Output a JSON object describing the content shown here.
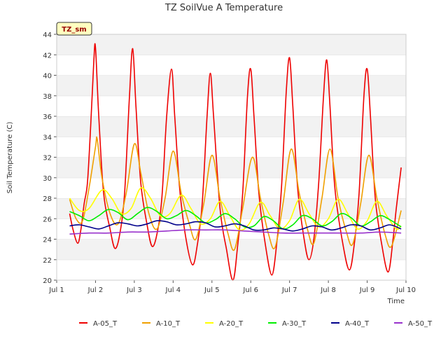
{
  "chart_data": {
    "type": "line",
    "title": "TZ SoilVue A Temperature",
    "xlabel": "Time",
    "ylabel": "Soil Temperature (C)",
    "badge": "TZ_sm",
    "xlim": [
      "2023-07-01",
      "2023-07-10"
    ],
    "ylim": [
      20,
      44
    ],
    "x_ticks": [
      {
        "date": "2023-07-01",
        "label": "Jul 1"
      },
      {
        "date": "2023-07-02",
        "label": "Jul 2"
      },
      {
        "date": "2023-07-03",
        "label": "Jul 3"
      },
      {
        "date": "2023-07-04",
        "label": "Jul 4"
      },
      {
        "date": "2023-07-05",
        "label": "Jul 5"
      },
      {
        "date": "2023-07-06",
        "label": "Jul 6"
      },
      {
        "date": "2023-07-07",
        "label": "Jul 7"
      },
      {
        "date": "2023-07-08",
        "label": "Jul 8"
      },
      {
        "date": "2023-07-09",
        "label": "Jul 9"
      },
      {
        "date": "2023-07-10",
        "label": "Jul 10"
      }
    ],
    "y_ticks": [
      20,
      22,
      24,
      26,
      28,
      30,
      32,
      34,
      36,
      38,
      40,
      42,
      44
    ],
    "grid": "horizontal bands",
    "legend_position": "bottom",
    "series": [
      {
        "name": "A-05_T",
        "color": "#ee0000",
        "points": [
          [
            "2023-07-01 08:00",
            26.5
          ],
          [
            "2023-07-01 10:00",
            25.0
          ],
          [
            "2023-07-01 13:00",
            23.6
          ],
          [
            "2023-07-01 15:00",
            25.0
          ],
          [
            "2023-07-01 17:00",
            27.5
          ],
          [
            "2023-07-01 19:00",
            29.5
          ],
          [
            "2023-07-01 21:00",
            35.0
          ],
          [
            "2023-07-01 23:00",
            41.5
          ],
          [
            "2023-07-02 00:00",
            42.7
          ],
          [
            "2023-07-02 02:00",
            36.0
          ],
          [
            "2023-07-02 05:00",
            28.5
          ],
          [
            "2023-07-02 09:00",
            25.0
          ],
          [
            "2023-07-02 12:00",
            23.1
          ],
          [
            "2023-07-02 15:00",
            24.5
          ],
          [
            "2023-07-02 18:00",
            28.5
          ],
          [
            "2023-07-02 21:00",
            38.0
          ],
          [
            "2023-07-02 23:00",
            42.6
          ],
          [
            "2023-07-03 01:00",
            37.0
          ],
          [
            "2023-07-03 04:00",
            29.5
          ],
          [
            "2023-07-03 08:00",
            25.3
          ],
          [
            "2023-07-03 11:00",
            23.3
          ],
          [
            "2023-07-03 14:00",
            24.5
          ],
          [
            "2023-07-03 17:00",
            28.0
          ],
          [
            "2023-07-03 20:00",
            36.0
          ],
          [
            "2023-07-03 23:00",
            40.6
          ],
          [
            "2023-07-04 01:00",
            36.0
          ],
          [
            "2023-07-04 04:00",
            29.0
          ],
          [
            "2023-07-04 08:00",
            24.0
          ],
          [
            "2023-07-04 12:00",
            21.5
          ],
          [
            "2023-07-04 15:00",
            23.5
          ],
          [
            "2023-07-04 18:00",
            27.5
          ],
          [
            "2023-07-04 21:00",
            36.0
          ],
          [
            "2023-07-04 23:00",
            40.2
          ],
          [
            "2023-07-05 01:00",
            36.0
          ],
          [
            "2023-07-05 05:00",
            27.0
          ],
          [
            "2023-07-05 09:00",
            23.0
          ],
          [
            "2023-07-05 13:00",
            20.0
          ],
          [
            "2023-07-05 16:00",
            23.5
          ],
          [
            "2023-07-05 19:00",
            28.5
          ],
          [
            "2023-07-05 22:00",
            38.0
          ],
          [
            "2023-07-06 00:00",
            40.6
          ],
          [
            "2023-07-06 02:00",
            36.0
          ],
          [
            "2023-07-06 05:00",
            28.5
          ],
          [
            "2023-07-06 09:00",
            23.5
          ],
          [
            "2023-07-06 13:00",
            20.5
          ],
          [
            "2023-07-06 16:00",
            23.5
          ],
          [
            "2023-07-06 19:00",
            29.0
          ],
          [
            "2023-07-06 22:00",
            38.5
          ],
          [
            "2023-07-07 00:00",
            41.7
          ],
          [
            "2023-07-07 02:00",
            37.0
          ],
          [
            "2023-07-07 05:00",
            29.0
          ],
          [
            "2023-07-07 09:00",
            24.0
          ],
          [
            "2023-07-07 12:00",
            22.0
          ],
          [
            "2023-07-07 15:00",
            24.0
          ],
          [
            "2023-07-07 18:00",
            29.5
          ],
          [
            "2023-07-07 21:00",
            38.0
          ],
          [
            "2023-07-07 23:00",
            41.5
          ],
          [
            "2023-07-08 01:00",
            37.0
          ],
          [
            "2023-07-08 04:00",
            29.0
          ],
          [
            "2023-07-08 09:00",
            23.5
          ],
          [
            "2023-07-08 13:00",
            21.0
          ],
          [
            "2023-07-08 16:00",
            23.5
          ],
          [
            "2023-07-08 19:00",
            28.5
          ],
          [
            "2023-07-08 22:00",
            38.0
          ],
          [
            "2023-07-09 00:00",
            40.6
          ],
          [
            "2023-07-09 02:00",
            36.0
          ],
          [
            "2023-07-09 05:00",
            28.0
          ],
          [
            "2023-07-09 09:00",
            23.5
          ],
          [
            "2023-07-09 13:00",
            20.8
          ],
          [
            "2023-07-09 16:00",
            24.0
          ],
          [
            "2023-07-09 18:00",
            27.0
          ],
          [
            "2023-07-09 21:00",
            31.0
          ]
        ]
      },
      {
        "name": "A-10_T",
        "color": "#f0a000",
        "points": [
          [
            "2023-07-01 08:00",
            27.9
          ],
          [
            "2023-07-01 12:00",
            26.0
          ],
          [
            "2023-07-01 16:00",
            25.8
          ],
          [
            "2023-07-01 20:00",
            29.0
          ],
          [
            "2023-07-02 00:00",
            33.0
          ],
          [
            "2023-07-02 01:00",
            33.8
          ],
          [
            "2023-07-02 04:00",
            30.0
          ],
          [
            "2023-07-02 09:00",
            26.5
          ],
          [
            "2023-07-02 14:00",
            25.5
          ],
          [
            "2023-07-02 19:00",
            28.5
          ],
          [
            "2023-07-03 00:00",
            33.3
          ],
          [
            "2023-07-03 04:00",
            30.5
          ],
          [
            "2023-07-03 09:00",
            26.5
          ],
          [
            "2023-07-03 14:00",
            25.0
          ],
          [
            "2023-07-03 19:00",
            28.0
          ],
          [
            "2023-07-04 00:00",
            32.6
          ],
          [
            "2023-07-04 05:00",
            28.5
          ],
          [
            "2023-07-04 10:00",
            25.5
          ],
          [
            "2023-07-04 14:00",
            24.0
          ],
          [
            "2023-07-04 19:00",
            27.5
          ],
          [
            "2023-07-05 00:00",
            32.2
          ],
          [
            "2023-07-05 05:00",
            28.0
          ],
          [
            "2023-07-05 10:00",
            24.5
          ],
          [
            "2023-07-05 14:00",
            23.0
          ],
          [
            "2023-07-05 19:00",
            27.0
          ],
          [
            "2023-07-06 01:00",
            32.0
          ],
          [
            "2023-07-06 06:00",
            28.0
          ],
          [
            "2023-07-06 11:00",
            24.5
          ],
          [
            "2023-07-06 15:00",
            23.2
          ],
          [
            "2023-07-06 20:00",
            27.5
          ],
          [
            "2023-07-07 01:00",
            32.8
          ],
          [
            "2023-07-07 06:00",
            28.5
          ],
          [
            "2023-07-07 11:00",
            25.0
          ],
          [
            "2023-07-07 15:00",
            23.6
          ],
          [
            "2023-07-07 20:00",
            28.0
          ],
          [
            "2023-07-08 01:00",
            32.8
          ],
          [
            "2023-07-08 06:00",
            28.0
          ],
          [
            "2023-07-08 11:00",
            24.8
          ],
          [
            "2023-07-08 15:00",
            23.5
          ],
          [
            "2023-07-08 20:00",
            27.5
          ],
          [
            "2023-07-09 01:00",
            32.2
          ],
          [
            "2023-07-09 06:00",
            28.0
          ],
          [
            "2023-07-09 11:00",
            24.5
          ],
          [
            "2023-07-09 15:00",
            23.3
          ],
          [
            "2023-07-09 21:00",
            26.8
          ]
        ]
      },
      {
        "name": "A-20_T",
        "color": "#ffff00",
        "points": [
          [
            "2023-07-01 08:00",
            28.0
          ],
          [
            "2023-07-01 14:00",
            26.8
          ],
          [
            "2023-07-01 20:00",
            27.0
          ],
          [
            "2023-07-02 04:00",
            28.8
          ],
          [
            "2023-07-02 10:00",
            28.0
          ],
          [
            "2023-07-02 16:00",
            26.5
          ],
          [
            "2023-07-02 22:00",
            27.0
          ],
          [
            "2023-07-03 04:00",
            29.0
          ],
          [
            "2023-07-03 10:00",
            28.0
          ],
          [
            "2023-07-03 16:00",
            26.3
          ],
          [
            "2023-07-03 22:00",
            26.5
          ],
          [
            "2023-07-04 05:00",
            28.3
          ],
          [
            "2023-07-04 11:00",
            27.0
          ],
          [
            "2023-07-04 17:00",
            25.5
          ],
          [
            "2023-07-04 23:00",
            26.0
          ],
          [
            "2023-07-05 05:00",
            27.7
          ],
          [
            "2023-07-05 11:00",
            26.3
          ],
          [
            "2023-07-05 17:00",
            24.9
          ],
          [
            "2023-07-05 23:00",
            25.5
          ],
          [
            "2023-07-06 06:00",
            27.6
          ],
          [
            "2023-07-06 12:00",
            26.3
          ],
          [
            "2023-07-06 18:00",
            25.0
          ],
          [
            "2023-07-07 00:00",
            25.8
          ],
          [
            "2023-07-07 06:00",
            27.9
          ],
          [
            "2023-07-07 12:00",
            26.5
          ],
          [
            "2023-07-07 18:00",
            25.2
          ],
          [
            "2023-07-08 00:00",
            26.0
          ],
          [
            "2023-07-08 06:00",
            27.9
          ],
          [
            "2023-07-08 12:00",
            26.5
          ],
          [
            "2023-07-08 18:00",
            25.0
          ],
          [
            "2023-07-09 00:00",
            25.8
          ],
          [
            "2023-07-09 06:00",
            27.7
          ],
          [
            "2023-07-09 12:00",
            26.3
          ],
          [
            "2023-07-09 18:00",
            25.0
          ],
          [
            "2023-07-09 21:00",
            25.3
          ]
        ]
      },
      {
        "name": "A-30_T",
        "color": "#00ee00",
        "points": [
          [
            "2023-07-01 08:00",
            26.7
          ],
          [
            "2023-07-01 14:00",
            26.3
          ],
          [
            "2023-07-01 20:00",
            25.8
          ],
          [
            "2023-07-02 02:00",
            26.3
          ],
          [
            "2023-07-02 08:00",
            26.9
          ],
          [
            "2023-07-02 14:00",
            26.6
          ],
          [
            "2023-07-02 20:00",
            25.9
          ],
          [
            "2023-07-03 02:00",
            26.5
          ],
          [
            "2023-07-03 08:00",
            27.1
          ],
          [
            "2023-07-03 14:00",
            26.7
          ],
          [
            "2023-07-03 20:00",
            26.0
          ],
          [
            "2023-07-04 02:00",
            26.3
          ],
          [
            "2023-07-04 08:00",
            26.8
          ],
          [
            "2023-07-04 14:00",
            26.3
          ],
          [
            "2023-07-04 20:00",
            25.6
          ],
          [
            "2023-07-05 02:00",
            25.9
          ],
          [
            "2023-07-05 08:00",
            26.5
          ],
          [
            "2023-07-05 14:00",
            26.0
          ],
          [
            "2023-07-05 20:00",
            25.2
          ],
          [
            "2023-07-06 02:00",
            25.3
          ],
          [
            "2023-07-06 08:00",
            26.2
          ],
          [
            "2023-07-06 14:00",
            25.8
          ],
          [
            "2023-07-06 20:00",
            25.0
          ],
          [
            "2023-07-07 02:00",
            25.4
          ],
          [
            "2023-07-07 08:00",
            26.3
          ],
          [
            "2023-07-07 14:00",
            26.0
          ],
          [
            "2023-07-07 20:00",
            25.3
          ],
          [
            "2023-07-08 02:00",
            25.7
          ],
          [
            "2023-07-08 08:00",
            26.5
          ],
          [
            "2023-07-08 14:00",
            26.1
          ],
          [
            "2023-07-08 20:00",
            25.3
          ],
          [
            "2023-07-09 02:00",
            25.7
          ],
          [
            "2023-07-09 08:00",
            26.3
          ],
          [
            "2023-07-09 14:00",
            25.9
          ],
          [
            "2023-07-09 21:00",
            25.2
          ]
        ]
      },
      {
        "name": "A-40_T",
        "color": "#00008b",
        "points": [
          [
            "2023-07-01 08:00",
            25.3
          ],
          [
            "2023-07-01 14:00",
            25.4
          ],
          [
            "2023-07-01 20:00",
            25.2
          ],
          [
            "2023-07-02 02:00",
            25.0
          ],
          [
            "2023-07-02 08:00",
            25.3
          ],
          [
            "2023-07-02 14:00",
            25.6
          ],
          [
            "2023-07-02 20:00",
            25.5
          ],
          [
            "2023-07-03 02:00",
            25.3
          ],
          [
            "2023-07-03 08:00",
            25.5
          ],
          [
            "2023-07-03 14:00",
            25.8
          ],
          [
            "2023-07-03 20:00",
            25.7
          ],
          [
            "2023-07-04 02:00",
            25.4
          ],
          [
            "2023-07-04 08:00",
            25.5
          ],
          [
            "2023-07-04 14:00",
            25.7
          ],
          [
            "2023-07-04 20:00",
            25.6
          ],
          [
            "2023-07-05 02:00",
            25.2
          ],
          [
            "2023-07-05 08:00",
            25.3
          ],
          [
            "2023-07-05 14:00",
            25.5
          ],
          [
            "2023-07-05 20:00",
            25.3
          ],
          [
            "2023-07-06 02:00",
            24.9
          ],
          [
            "2023-07-06 08:00",
            24.9
          ],
          [
            "2023-07-06 14:00",
            25.1
          ],
          [
            "2023-07-06 20:00",
            25.0
          ],
          [
            "2023-07-07 02:00",
            24.8
          ],
          [
            "2023-07-07 08:00",
            25.0
          ],
          [
            "2023-07-07 14:00",
            25.3
          ],
          [
            "2023-07-07 20:00",
            25.2
          ],
          [
            "2023-07-08 02:00",
            24.9
          ],
          [
            "2023-07-08 08:00",
            25.1
          ],
          [
            "2023-07-08 14:00",
            25.4
          ],
          [
            "2023-07-08 20:00",
            25.3
          ],
          [
            "2023-07-09 02:00",
            24.9
          ],
          [
            "2023-07-09 08:00",
            25.1
          ],
          [
            "2023-07-09 14:00",
            25.4
          ],
          [
            "2023-07-09 21:00",
            25.0
          ]
        ]
      },
      {
        "name": "A-50_T",
        "color": "#9932cc",
        "points": [
          [
            "2023-07-01 08:00",
            24.5
          ],
          [
            "2023-07-01 20:00",
            24.6
          ],
          [
            "2023-07-02 08:00",
            24.6
          ],
          [
            "2023-07-02 20:00",
            24.7
          ],
          [
            "2023-07-03 08:00",
            24.7
          ],
          [
            "2023-07-03 20:00",
            24.8
          ],
          [
            "2023-07-04 08:00",
            24.9
          ],
          [
            "2023-07-04 20:00",
            24.9
          ],
          [
            "2023-07-05 08:00",
            24.9
          ],
          [
            "2023-07-05 20:00",
            24.8
          ],
          [
            "2023-07-06 08:00",
            24.7
          ],
          [
            "2023-07-06 20:00",
            24.6
          ],
          [
            "2023-07-07 08:00",
            24.6
          ],
          [
            "2023-07-07 20:00",
            24.6
          ],
          [
            "2023-07-08 08:00",
            24.6
          ],
          [
            "2023-07-08 20:00",
            24.6
          ],
          [
            "2023-07-09 08:00",
            24.7
          ],
          [
            "2023-07-09 21:00",
            24.6
          ]
        ]
      }
    ]
  }
}
